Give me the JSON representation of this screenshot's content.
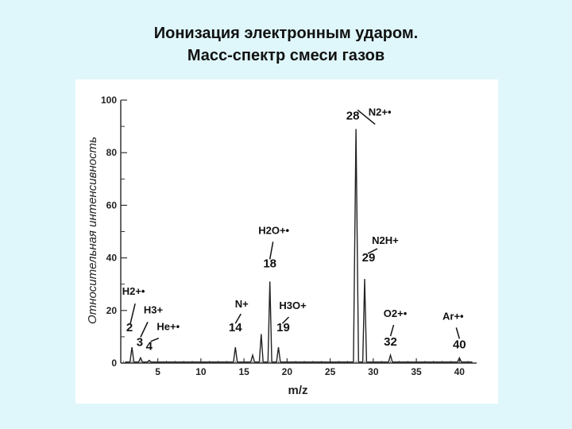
{
  "slide": {
    "title_line1": "Ионизация электронным ударом.",
    "title_line2": "Масс-спектр смеси газов"
  },
  "chart_data": {
    "type": "line",
    "title": "",
    "xlabel": "m/z",
    "ylabel": "Относительная интенсивность",
    "xlim": [
      0,
      42
    ],
    "ylim": [
      0,
      100
    ],
    "xticks": [
      5,
      10,
      15,
      20,
      25,
      30,
      35,
      40
    ],
    "yticks": [
      0,
      20,
      40,
      60,
      80,
      100
    ],
    "grid": false,
    "peaks": [
      {
        "mz": 2,
        "intensity": 6,
        "label": "2",
        "ion": "H2+•"
      },
      {
        "mz": 3,
        "intensity": 2,
        "label": "3",
        "ion": "H3+"
      },
      {
        "mz": 4,
        "intensity": 1,
        "label": "4",
        "ion": "He+•"
      },
      {
        "mz": 14,
        "intensity": 6,
        "label": "14",
        "ion": "N+"
      },
      {
        "mz": 16,
        "intensity": 3,
        "label": "",
        "ion": ""
      },
      {
        "mz": 17,
        "intensity": 11,
        "label": "",
        "ion": ""
      },
      {
        "mz": 18,
        "intensity": 31,
        "label": "18",
        "ion": "H2O+•"
      },
      {
        "mz": 19,
        "intensity": 6,
        "label": "19",
        "ion": "H3O+"
      },
      {
        "mz": 28,
        "intensity": 89,
        "label": "28",
        "ion": "N2+•"
      },
      {
        "mz": 29,
        "intensity": 32,
        "label": "29",
        "ion": "N2H+"
      },
      {
        "mz": 32,
        "intensity": 3,
        "label": "32",
        "ion": "O2+•"
      },
      {
        "mz": 40,
        "intensity": 2,
        "label": "40",
        "ion": "Ar+•"
      }
    ]
  }
}
